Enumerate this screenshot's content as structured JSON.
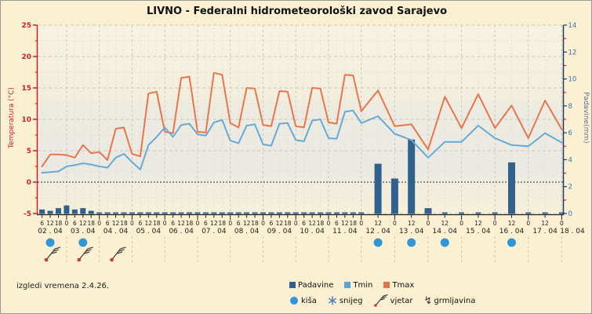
{
  "title": "LIVNO - Federalni hidrometeorološki zavod Sarajevo",
  "footer_note": "izgledi vremena 2.4.26.",
  "axes": {
    "left_label": "Temperatura (°C)",
    "right_label": "Padavine(mm)",
    "left_tick_color": "#cc2222",
    "right_tick_color": "#3a6fb5"
  },
  "legend": {
    "series": [
      {
        "label": "Padavine",
        "color": "#31608c"
      },
      {
        "label": "Tmin",
        "color": "#5ba3d0"
      },
      {
        "label": "Tmax",
        "color": "#e8714a"
      }
    ],
    "symbols": [
      {
        "label": "kiša",
        "icon": "rain-circle",
        "color": "#2f97d8"
      },
      {
        "label": "snijeg",
        "icon": "snowflake-icon",
        "color": "#4a7ab5"
      },
      {
        "label": "vjetar",
        "icon": "wind-barb",
        "color": "#333333"
      },
      {
        "label": "grmljavina",
        "icon": "lightning",
        "glyph": "↯",
        "color": "#333333"
      }
    ]
  },
  "chart_data": {
    "type": "line+bar",
    "title": "LIVNO - Federalni hidrometeorološki zavod Sarajevo",
    "x_unit": "days since 02.04 00h (6-hourly data until 12.04, 12-hourly after)",
    "six_hour_until": 10,
    "temp_axis": {
      "min": -5,
      "max": 25,
      "ticks": [
        25,
        20,
        15,
        10,
        5,
        0,
        -5
      ]
    },
    "precip_axis": {
      "min": 0,
      "max": 14,
      "ticks": [
        0,
        2,
        4,
        6,
        8,
        10,
        12,
        14
      ]
    },
    "dates": [
      "02 . 04",
      "03 . 04",
      "04 . 04",
      "05 . 04",
      "06 . 04",
      "07 . 04",
      "08 . 04",
      "09 . 04",
      "10 . 04",
      "11 . 04",
      "12 . 04",
      "13 . 04",
      "14 . 04",
      "15 . 04",
      "16 . 04",
      "17 . 04",
      "18 . 04"
    ],
    "hour_labels_left": [
      "6",
      "12",
      "18",
      "0"
    ],
    "hour_labels_right": [
      "12",
      "0"
    ],
    "colors": {
      "tmax": "#e8764d",
      "tmin": "#68aad5",
      "bars": "#31608c",
      "rain_icon": "#2f97d8",
      "grid_major": "#cdc9ba",
      "grid_minor": "#ddd9ca",
      "zero_line": "#333333",
      "left_axis": "#cc2222",
      "right_axis_spine": "#1f3a6e",
      "right_axis_text": "#3a6fb5",
      "x_axis": "#222222"
    },
    "series": {
      "tmax": [
        [
          0.25,
          2.5
        ],
        [
          0.5,
          4.4
        ],
        [
          0.75,
          4.4
        ],
        [
          1,
          4.3
        ],
        [
          1.25,
          3.9
        ],
        [
          1.5,
          5.9
        ],
        [
          1.75,
          4.6
        ],
        [
          2,
          4.8
        ],
        [
          2.25,
          3.5
        ],
        [
          2.5,
          8.5
        ],
        [
          2.75,
          8.7
        ],
        [
          3,
          4.5
        ],
        [
          3.25,
          4.1
        ],
        [
          3.5,
          14.1
        ],
        [
          3.75,
          14.4
        ],
        [
          4,
          8.0
        ],
        [
          4.25,
          7.8
        ],
        [
          4.5,
          16.6
        ],
        [
          4.75,
          16.8
        ],
        [
          5,
          8.0
        ],
        [
          5.25,
          7.9
        ],
        [
          5.5,
          17.4
        ],
        [
          5.75,
          17.1
        ],
        [
          6,
          9.4
        ],
        [
          6.25,
          8.7
        ],
        [
          6.5,
          15.0
        ],
        [
          6.75,
          14.9
        ],
        [
          7,
          9.1
        ],
        [
          7.25,
          8.9
        ],
        [
          7.5,
          14.5
        ],
        [
          7.75,
          14.4
        ],
        [
          8,
          8.9
        ],
        [
          8.25,
          8.7
        ],
        [
          8.5,
          15.0
        ],
        [
          8.75,
          14.9
        ],
        [
          9,
          9.5
        ],
        [
          9.25,
          9.3
        ],
        [
          9.5,
          17.1
        ],
        [
          9.75,
          17.0
        ],
        [
          10,
          11.3
        ],
        [
          10.5,
          14.6
        ],
        [
          11,
          8.9
        ],
        [
          11.5,
          9.2
        ],
        [
          12,
          5.2
        ],
        [
          12.5,
          13.6
        ],
        [
          13,
          8.6
        ],
        [
          13.5,
          14.0
        ],
        [
          14,
          8.6
        ],
        [
          14.5,
          12.2
        ],
        [
          15,
          7.0
        ],
        [
          15.5,
          13.0
        ],
        [
          16,
          8.4
        ]
      ],
      "tmin": [
        [
          0.25,
          1.5
        ],
        [
          0.5,
          1.6
        ],
        [
          0.75,
          1.7
        ],
        [
          1,
          2.5
        ],
        [
          1.25,
          2.7
        ],
        [
          1.5,
          3.0
        ],
        [
          1.75,
          2.8
        ],
        [
          2,
          2.5
        ],
        [
          2.25,
          2.3
        ],
        [
          2.5,
          3.9
        ],
        [
          2.75,
          4.5
        ],
        [
          3,
          3.2
        ],
        [
          3.25,
          2.0
        ],
        [
          3.5,
          5.9
        ],
        [
          3.75,
          7.2
        ],
        [
          4,
          8.7
        ],
        [
          4.25,
          7.2
        ],
        [
          4.5,
          9.1
        ],
        [
          4.75,
          9.3
        ],
        [
          5,
          7.6
        ],
        [
          5.25,
          7.4
        ],
        [
          5.5,
          9.5
        ],
        [
          5.75,
          9.9
        ],
        [
          6,
          6.6
        ],
        [
          6.25,
          6.2
        ],
        [
          6.5,
          9.0
        ],
        [
          6.75,
          9.2
        ],
        [
          7,
          6.0
        ],
        [
          7.25,
          5.8
        ],
        [
          7.5,
          9.3
        ],
        [
          7.75,
          9.4
        ],
        [
          8,
          6.7
        ],
        [
          8.25,
          6.5
        ],
        [
          8.5,
          9.8
        ],
        [
          8.75,
          10.0
        ],
        [
          9,
          7.0
        ],
        [
          9.25,
          6.9
        ],
        [
          9.5,
          11.2
        ],
        [
          9.75,
          11.4
        ],
        [
          10,
          9.4
        ],
        [
          10.5,
          10.5
        ],
        [
          11,
          7.7
        ],
        [
          11.5,
          6.7
        ],
        [
          12,
          3.9
        ],
        [
          12.5,
          6.4
        ],
        [
          13,
          6.4
        ],
        [
          13.5,
          9.0
        ],
        [
          14,
          7.0
        ],
        [
          14.5,
          5.9
        ],
        [
          15,
          5.7
        ],
        [
          15.5,
          7.8
        ],
        [
          16,
          6.3
        ]
      ],
      "padavine_mm": [
        [
          0.25,
          0.3
        ],
        [
          0.5,
          0.2
        ],
        [
          0.75,
          0.4
        ],
        [
          1,
          0.6
        ],
        [
          1.25,
          0.3
        ],
        [
          1.5,
          0.4
        ],
        [
          1.75,
          0.2
        ],
        [
          2,
          0
        ],
        [
          2.25,
          0
        ],
        [
          2.5,
          0
        ],
        [
          2.75,
          0
        ],
        [
          3,
          0
        ],
        [
          3.25,
          0
        ],
        [
          3.5,
          0
        ],
        [
          3.75,
          0
        ],
        [
          4,
          0
        ],
        [
          4.25,
          0
        ],
        [
          4.5,
          0
        ],
        [
          4.75,
          0
        ],
        [
          5,
          0
        ],
        [
          5.25,
          0
        ],
        [
          5.5,
          0
        ],
        [
          5.75,
          0
        ],
        [
          6,
          0
        ],
        [
          6.25,
          0
        ],
        [
          6.5,
          0
        ],
        [
          6.75,
          0
        ],
        [
          7,
          0
        ],
        [
          7.25,
          0
        ],
        [
          7.5,
          0
        ],
        [
          7.75,
          0
        ],
        [
          8,
          0
        ],
        [
          8.25,
          0
        ],
        [
          8.5,
          0
        ],
        [
          8.75,
          0
        ],
        [
          9,
          0
        ],
        [
          9.25,
          0
        ],
        [
          9.5,
          0
        ],
        [
          9.75,
          0
        ],
        [
          10,
          0
        ],
        [
          10.5,
          3.7
        ],
        [
          11,
          2.6
        ],
        [
          11.5,
          5.5
        ],
        [
          12,
          0.4
        ],
        [
          12.5,
          0
        ],
        [
          13,
          0
        ],
        [
          13.5,
          0
        ],
        [
          14,
          0
        ],
        [
          14.5,
          3.8
        ],
        [
          15,
          0
        ],
        [
          15.5,
          0
        ],
        [
          16,
          0
        ]
      ]
    },
    "icons": {
      "rain_circle_day_indices": [
        0,
        1,
        10,
        11,
        12,
        14
      ],
      "wind_barb_day_indices": [
        0,
        1,
        2
      ]
    },
    "legend_entries": [
      "Padavine",
      "Tmin",
      "Tmax",
      "kiša",
      "snijeg",
      "vjetar",
      "grmljavina"
    ],
    "grid": true,
    "legend_position": "bottom-center"
  }
}
